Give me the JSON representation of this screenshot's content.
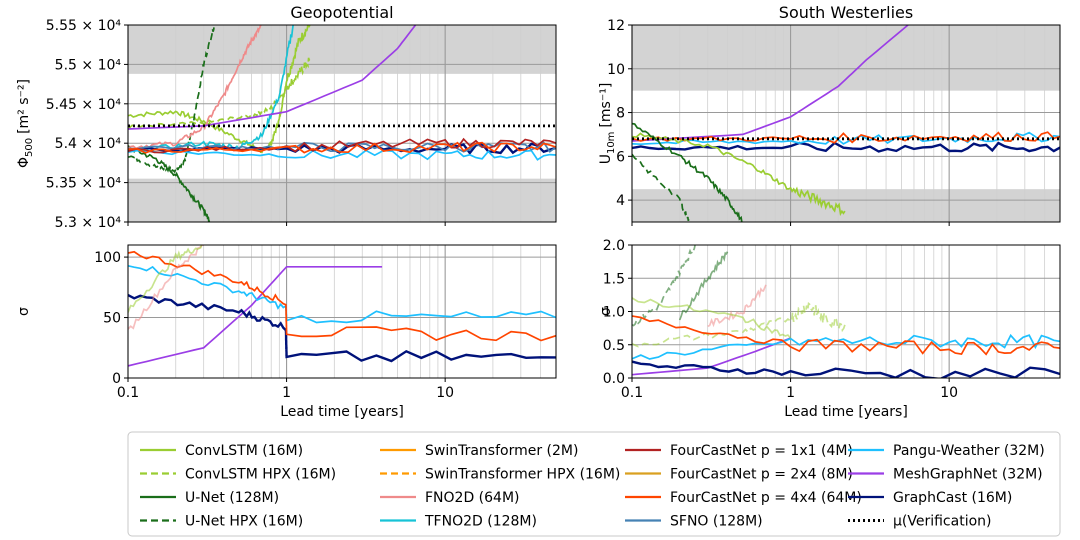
{
  "chart_data": [
    {
      "id": "geo_mean",
      "type": "line",
      "title": "Geopotential",
      "ylabel_main": "Φ",
      "ylabel_sub": "500",
      "ylabel_units": "[m² s⁻²]",
      "xscale": "log",
      "xlim": [
        0.1,
        50
      ],
      "ylim": [
        53000,
        55500
      ],
      "yticks": [
        53000,
        53500,
        54000,
        54500,
        55000,
        55500
      ],
      "ytick_labels": [
        "5.3 × 10⁴",
        "5.35 × 10⁴",
        "5.4 × 10⁴",
        "5.45 × 10⁴",
        "5.5 × 10⁴",
        "5.55 × 10⁴"
      ],
      "xticks": [
        0.1,
        1,
        10
      ],
      "xtick_labels": [
        "0.1",
        "1",
        "10"
      ],
      "shaded_bands": [
        [
          53000,
          53550
        ],
        [
          54880,
          55500
        ]
      ],
      "verification_mean": 54220,
      "series": [
        {
          "name": "ConvLSTM (16M)",
          "x": [
            0.1,
            0.2,
            0.3,
            0.5,
            0.7,
            0.8,
            0.9,
            1.0,
            1.2,
            1.4
          ],
          "y": [
            54350,
            54400,
            54280,
            54050,
            53900,
            54000,
            54300,
            54800,
            55300,
            55500
          ]
        },
        {
          "name": "ConvLSTM HPX (16M)",
          "x": [
            0.1,
            0.3,
            0.6,
            0.8,
            1.0,
            1.2,
            1.4
          ],
          "y": [
            54200,
            54250,
            54350,
            54450,
            54700,
            54900,
            55050
          ]
        },
        {
          "name": "U-Net (128M)",
          "x": [
            0.1,
            0.15,
            0.2,
            0.25,
            0.3,
            0.33
          ],
          "y": [
            53950,
            53800,
            53600,
            53350,
            53150,
            53000
          ]
        },
        {
          "name": "U-Net HPX (16M)",
          "x": [
            0.1,
            0.15,
            0.2,
            0.23,
            0.26,
            0.3,
            0.35
          ],
          "y": [
            53850,
            53700,
            53650,
            53800,
            54300,
            55000,
            55500
          ]
        },
        {
          "name": "FNO2D (64M)",
          "x": [
            0.1,
            0.2,
            0.3,
            0.4,
            0.5,
            0.6,
            0.7
          ],
          "y": [
            53950,
            54000,
            54200,
            54600,
            55000,
            55300,
            55500
          ]
        },
        {
          "name": "TFNO2D (128M)",
          "x": [
            0.1,
            0.3,
            0.5,
            0.7,
            0.9,
            1.1
          ],
          "y": [
            53900,
            54000,
            53950,
            54100,
            54600,
            55500
          ]
        },
        {
          "name": "MeshGraphNet (32M)",
          "x": [
            0.1,
            0.3,
            1,
            3,
            5,
            6.5
          ],
          "y": [
            54180,
            54220,
            54400,
            54800,
            55200,
            55500
          ]
        },
        {
          "name": "GraphCast (16M)",
          "x": [
            0.1,
            1,
            10,
            50
          ],
          "y": [
            53920,
            53930,
            53930,
            53940
          ]
        },
        {
          "name": "Pangu-Weather (32M)",
          "x": [
            0.1,
            1,
            10,
            50
          ],
          "y": [
            53900,
            53850,
            53850,
            53850
          ]
        },
        {
          "name": "SFNO (128M)",
          "x": [
            0.1,
            1,
            10,
            50
          ],
          "y": [
            53950,
            53950,
            53950,
            53950
          ]
        },
        {
          "name": "FourCastNet p=1x1 (4M)",
          "x": [
            0.1,
            1,
            10,
            50
          ],
          "y": [
            53900,
            53950,
            54000,
            54000
          ]
        },
        {
          "name": "FourCastNet p=4x4 (64M)",
          "x": [
            0.1,
            1,
            10,
            50
          ],
          "y": [
            53900,
            53930,
            53950,
            53950
          ]
        },
        {
          "name": "µ(Verification)",
          "x": [
            0.1,
            50
          ],
          "y": [
            54220,
            54220
          ]
        }
      ]
    },
    {
      "id": "geo_std",
      "type": "line",
      "ylabel_main": "σ",
      "xlabel": "Lead time [years]",
      "xscale": "log",
      "xlim": [
        0.1,
        50
      ],
      "ylim": [
        0,
        110
      ],
      "yticks": [
        0,
        50,
        100
      ],
      "ytick_labels": [
        "0",
        "50",
        "100"
      ],
      "xticks": [
        0.1,
        1,
        10
      ],
      "xtick_labels": [
        "0.1",
        "1",
        "10"
      ],
      "series": [
        {
          "name": "MeshGraphNet (32M)",
          "x": [
            0.1,
            0.3,
            0.6,
            1,
            4
          ],
          "y": [
            10,
            25,
            60,
            92,
            92
          ]
        },
        {
          "name": "GraphCast (16M)",
          "x": [
            0.1,
            0.5,
            0.99,
            1,
            50
          ],
          "y": [
            68,
            55,
            42,
            17,
            17
          ]
        },
        {
          "name": "Pangu-Weather (32M)",
          "x": [
            0.1,
            0.5,
            0.99,
            1,
            50
          ],
          "y": [
            95,
            72,
            58,
            50,
            50
          ]
        },
        {
          "name": "FourCastNet p=4x4 (64M)",
          "x": [
            0.1,
            0.5,
            0.99,
            1,
            50
          ],
          "y": [
            105,
            80,
            62,
            38,
            35
          ]
        },
        {
          "name": "FNO2D (64M)",
          "x": [
            0.1,
            0.2,
            0.3
          ],
          "y": [
            38,
            90,
            110
          ]
        },
        {
          "name": "ConvLSTM (16M)",
          "x": [
            0.1,
            0.2,
            0.3
          ],
          "y": [
            55,
            100,
            110
          ]
        }
      ]
    },
    {
      "id": "wind_mean",
      "type": "line",
      "title": "South Westerlies",
      "ylabel_main": "U",
      "ylabel_sub": "10m",
      "ylabel_units": "[ms⁻¹]",
      "xscale": "log",
      "xlim": [
        0.1,
        50
      ],
      "ylim": [
        3,
        12
      ],
      "yticks": [
        4,
        6,
        8,
        10,
        12
      ],
      "ytick_labels": [
        "4",
        "6",
        "8",
        "10",
        "12"
      ],
      "xticks": [
        0.1,
        1,
        10
      ],
      "xtick_labels": [
        "0.1",
        "1",
        "10"
      ],
      "shaded_bands": [
        [
          3,
          4.5
        ],
        [
          9,
          12
        ]
      ],
      "verification_mean": 6.8,
      "series": [
        {
          "name": "MeshGraphNet (32M)",
          "x": [
            0.1,
            0.5,
            1,
            2,
            3,
            5.5
          ],
          "y": [
            6.7,
            7.0,
            7.8,
            9.2,
            10.4,
            12
          ]
        },
        {
          "name": "GraphCast (16M)",
          "x": [
            0.1,
            1,
            10,
            50
          ],
          "y": [
            6.4,
            6.4,
            6.4,
            6.4
          ]
        },
        {
          "name": "Pangu-Weather (32M)",
          "x": [
            0.1,
            1,
            10,
            50
          ],
          "y": [
            6.6,
            6.7,
            6.8,
            6.9
          ]
        },
        {
          "name": "FourCastNet p=4x4 (64M)",
          "x": [
            0.1,
            1,
            10,
            50
          ],
          "y": [
            6.8,
            6.8,
            6.9,
            6.9
          ]
        },
        {
          "name": "ConvLSTM (16M)",
          "x": [
            0.1,
            0.3,
            0.6,
            1,
            1.5,
            2.2
          ],
          "y": [
            7.0,
            6.5,
            5.5,
            4.5,
            4.0,
            3.5
          ]
        },
        {
          "name": "U-Net (128M)",
          "x": [
            0.1,
            0.2,
            0.3,
            0.4,
            0.5
          ],
          "y": [
            7.5,
            6.0,
            5.0,
            4.0,
            3.0
          ]
        },
        {
          "name": "U-Net HPX (16M)",
          "x": [
            0.1,
            0.2,
            0.23
          ],
          "y": [
            6.0,
            4.0,
            3.0
          ]
        },
        {
          "name": "µ(Verification)",
          "x": [
            0.1,
            50
          ],
          "y": [
            6.8,
            6.8
          ]
        }
      ]
    },
    {
      "id": "wind_std",
      "type": "line",
      "ylabel_main": "σ",
      "xlabel": "Lead time [years]",
      "xscale": "log",
      "xlim": [
        0.1,
        50
      ],
      "ylim": [
        0,
        2
      ],
      "yticks": [
        0,
        0.5,
        1,
        1.5,
        2
      ],
      "ytick_labels": [
        "0.0",
        "0.5",
        "1.0",
        "1.5",
        "2.0"
      ],
      "xticks": [
        0.1,
        1,
        10
      ],
      "xtick_labels": [
        "0.1",
        "1",
        "10"
      ],
      "series": [
        {
          "name": "ConvLSTM HPX (16M)",
          "x": [
            0.1,
            0.5,
            1,
            1.3,
            1.6,
            2.2
          ],
          "y": [
            0.5,
            0.7,
            0.9,
            1.1,
            0.9,
            0.8
          ]
        },
        {
          "name": "U-Net HPX (16M)",
          "x": [
            0.1,
            0.15,
            0.2,
            0.25
          ],
          "y": [
            0.8,
            1.1,
            1.6,
            2.0
          ]
        },
        {
          "name": "U-Net (128M)",
          "x": [
            0.2,
            0.3,
            0.4
          ],
          "y": [
            0.9,
            1.5,
            1.9
          ]
        },
        {
          "name": "FNO2D (64M)",
          "x": [
            0.3,
            0.5,
            0.7
          ],
          "y": [
            0.8,
            1.0,
            1.4
          ]
        },
        {
          "name": "MeshGraphNet (32M)",
          "x": [
            0.1,
            0.3,
            0.6,
            1
          ],
          "y": [
            0.05,
            0.15,
            0.4,
            0.6
          ]
        },
        {
          "name": "GraphCast (16M)",
          "x": [
            0.1,
            1,
            50
          ],
          "y": [
            0.2,
            0.08,
            0.06
          ]
        },
        {
          "name": "Pangu-Weather (32M)",
          "x": [
            0.1,
            1,
            10,
            50
          ],
          "y": [
            0.3,
            0.55,
            0.55,
            0.55
          ]
        },
        {
          "name": "FourCastNet p=4x4 (64M)",
          "x": [
            0.1,
            1,
            10,
            50
          ],
          "y": [
            0.9,
            0.5,
            0.45,
            0.45
          ]
        },
        {
          "name": "ConvLSTM (16M)",
          "x": [
            0.1,
            0.5,
            1
          ],
          "y": [
            1.2,
            0.9,
            0.6
          ]
        }
      ]
    }
  ],
  "legend": {
    "placement": "bottom",
    "entries": [
      {
        "label": "ConvLSTM (16M)",
        "color": "#9acd32",
        "style": "solid"
      },
      {
        "label": "ConvLSTM HPX (16M)",
        "color": "#9acd32",
        "style": "dashed"
      },
      {
        "label": "U-Net (128M)",
        "color": "#1a6e1a",
        "style": "solid"
      },
      {
        "label": "U-Net HPX (16M)",
        "color": "#1a6e1a",
        "style": "dashed"
      },
      {
        "label": "SwinTransformer (2M)",
        "color": "#ff9a00",
        "style": "solid"
      },
      {
        "label": "SwinTransformer HPX (16M)",
        "color": "#ff9a00",
        "style": "dashed"
      },
      {
        "label": "FNO2D (64M)",
        "color": "#ef8a8a",
        "style": "solid"
      },
      {
        "label": "TFNO2D (128M)",
        "color": "#17c3d6",
        "style": "solid"
      },
      {
        "label": "FourCastNet p = 1x1 (4M)",
        "color": "#b22222",
        "style": "solid"
      },
      {
        "label": "FourCastNet p = 2x4 (8M)",
        "color": "#d9a020",
        "style": "solid"
      },
      {
        "label": "FourCastNet p = 4x4 (64M)",
        "color": "#ff4500",
        "style": "solid"
      },
      {
        "label": "SFNO (128M)",
        "color": "#4682b4",
        "style": "solid"
      },
      {
        "label": "Pangu-Weather (32M)",
        "color": "#1ec0ff",
        "style": "solid"
      },
      {
        "label": "MeshGraphNet (32M)",
        "color": "#9b3ee6",
        "style": "solid"
      },
      {
        "label": "GraphCast (16M)",
        "color": "#00127a",
        "style": "solid"
      },
      {
        "label": "µ(Verification)",
        "color": "#000000",
        "style": "dotted"
      }
    ]
  },
  "colors": {
    "ConvLSTM (16M)": "#9acd32",
    "ConvLSTM HPX (16M)": "#9acd32",
    "U-Net (128M)": "#1a6e1a",
    "U-Net HPX (16M)": "#1a6e1a",
    "SwinTransformer (2M)": "#ff9a00",
    "SwinTransformer HPX (16M)": "#ff9a00",
    "FNO2D (64M)": "#ef8a8a",
    "TFNO2D (128M)": "#17c3d6",
    "FourCastNet p=1x1 (4M)": "#b22222",
    "FourCastNet p=2x4 (8M)": "#d9a020",
    "FourCastNet p=4x4 (64M)": "#ff4500",
    "SFNO (128M)": "#4682b4",
    "Pangu-Weather (32M)": "#1ec0ff",
    "MeshGraphNet (32M)": "#9b3ee6",
    "GraphCast (16M)": "#00127a",
    "µ(Verification)": "#000000"
  }
}
